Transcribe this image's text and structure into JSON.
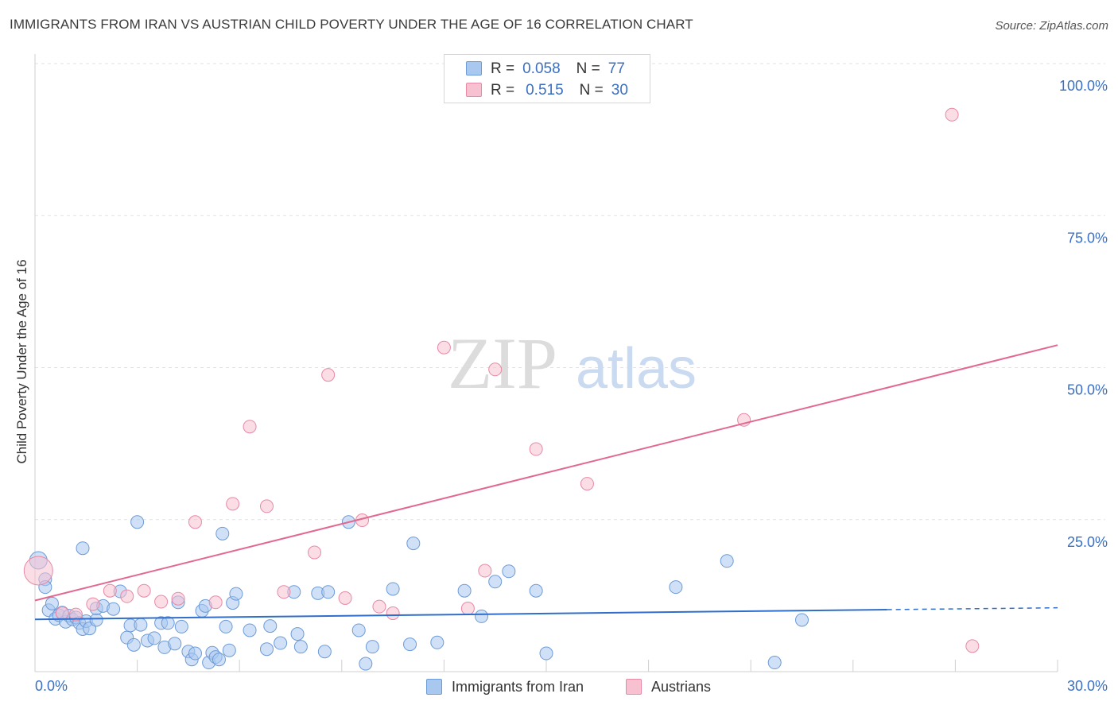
{
  "header": {
    "title": "IMMIGRANTS FROM IRAN VS AUSTRIAN CHILD POVERTY UNDER THE AGE OF 16 CORRELATION CHART",
    "source": "Source: ZipAtlas.com"
  },
  "watermark": {
    "zip": "ZIP",
    "atlas": "atlas"
  },
  "legend": {
    "rows": [
      {
        "r_label": "R =",
        "r_value": "0.058",
        "n_label": "N =",
        "n_value": "77",
        "color": "#a9c8f0",
        "border": "#6d9bd8"
      },
      {
        "r_label": "R =",
        "r_value": "0.515",
        "n_label": "N =",
        "n_value": "30",
        "color": "#f7c1d1",
        "border": "#e889a6"
      }
    ]
  },
  "chart_data": {
    "type": "scatter",
    "title": "IMMIGRANTS FROM IRAN VS AUSTRIAN CHILD POVERTY UNDER THE AGE OF 16 CORRELATION CHART",
    "xlabel": "",
    "ylabel": "Child Poverty Under the Age of 16",
    "xlim": [
      0,
      30
    ],
    "ylim": [
      0,
      100
    ],
    "x_ticks": [
      {
        "value": 0,
        "label": "0.0%"
      },
      {
        "value": 30,
        "label": "30.0%"
      }
    ],
    "y_ticks": [
      {
        "value": 25,
        "label": "25.0%"
      },
      {
        "value": 50,
        "label": "50.0%"
      },
      {
        "value": 75,
        "label": "75.0%"
      },
      {
        "value": 100,
        "label": "100.0%"
      }
    ],
    "grid": true,
    "legend_position": "top-center",
    "series": [
      {
        "name": "Immigrants from Iran",
        "color": "#a9c8f0",
        "edge": "#6d9bd8",
        "trend": {
          "x": [
            0,
            25
          ],
          "y": [
            8.6,
            10.2
          ],
          "dashed_to": [
            30,
            10.5
          ],
          "color": "#2f6fcb"
        },
        "points": [
          [
            0.1,
            18.3
          ],
          [
            0.3,
            15.2
          ],
          [
            0.3,
            13.9
          ],
          [
            0.4,
            10.1
          ],
          [
            0.5,
            11.2
          ],
          [
            0.6,
            8.7
          ],
          [
            0.7,
            9.3
          ],
          [
            0.8,
            9.7
          ],
          [
            0.9,
            8.2
          ],
          [
            1.0,
            9.2
          ],
          [
            1.1,
            8.6
          ],
          [
            1.2,
            8.9
          ],
          [
            1.3,
            8.0
          ],
          [
            1.4,
            7.0
          ],
          [
            1.5,
            8.3
          ],
          [
            1.6,
            7.1
          ],
          [
            1.8,
            8.5
          ],
          [
            1.4,
            20.3
          ],
          [
            1.8,
            10.4
          ],
          [
            2.0,
            10.8
          ],
          [
            2.3,
            10.3
          ],
          [
            2.5,
            13.2
          ],
          [
            2.7,
            5.6
          ],
          [
            2.8,
            7.6
          ],
          [
            2.9,
            4.4
          ],
          [
            3.1,
            7.7
          ],
          [
            3.3,
            5.1
          ],
          [
            3.5,
            5.5
          ],
          [
            3.7,
            8.0
          ],
          [
            3.8,
            4.0
          ],
          [
            3.9,
            8.0
          ],
          [
            4.1,
            4.6
          ],
          [
            4.2,
            11.4
          ],
          [
            4.3,
            7.4
          ],
          [
            4.5,
            3.3
          ],
          [
            4.6,
            2.0
          ],
          [
            4.7,
            3.0
          ],
          [
            4.9,
            10.0
          ],
          [
            5.0,
            10.8
          ],
          [
            5.1,
            1.5
          ],
          [
            5.2,
            3.1
          ],
          [
            5.3,
            2.4
          ],
          [
            5.4,
            2.0
          ],
          [
            5.5,
            22.7
          ],
          [
            5.6,
            7.4
          ],
          [
            5.7,
            3.5
          ],
          [
            5.8,
            11.3
          ],
          [
            5.9,
            12.8
          ],
          [
            3.0,
            24.6
          ],
          [
            6.3,
            6.8
          ],
          [
            6.8,
            3.7
          ],
          [
            6.9,
            7.5
          ],
          [
            7.2,
            4.7
          ],
          [
            7.6,
            13.1
          ],
          [
            7.7,
            6.2
          ],
          [
            7.8,
            4.1
          ],
          [
            8.3,
            12.9
          ],
          [
            8.5,
            3.3
          ],
          [
            9.2,
            24.6
          ],
          [
            9.5,
            6.8
          ],
          [
            9.7,
            1.3
          ],
          [
            9.9,
            4.1
          ],
          [
            10.5,
            13.6
          ],
          [
            11.0,
            4.5
          ],
          [
            11.1,
            21.1
          ],
          [
            11.8,
            4.8
          ],
          [
            12.6,
            13.3
          ],
          [
            13.1,
            9.1
          ],
          [
            13.5,
            14.8
          ],
          [
            13.9,
            16.5
          ],
          [
            14.7,
            13.3
          ],
          [
            15.0,
            3.0
          ],
          [
            18.8,
            13.9
          ],
          [
            20.3,
            18.2
          ],
          [
            22.5,
            8.5
          ],
          [
            21.7,
            1.5
          ],
          [
            8.6,
            13.1
          ]
        ]
      },
      {
        "name": "Austrians",
        "color": "#f7c1d1",
        "edge": "#e889a6",
        "trend": {
          "x": [
            0,
            30
          ],
          "y": [
            11.7,
            53.7
          ],
          "color": "#e2688f"
        },
        "points": [
          [
            0.1,
            16.6
          ],
          [
            0.8,
            9.6
          ],
          [
            1.2,
            9.4
          ],
          [
            1.7,
            11.1
          ],
          [
            2.2,
            13.3
          ],
          [
            2.7,
            12.4
          ],
          [
            3.2,
            13.3
          ],
          [
            3.7,
            11.5
          ],
          [
            4.2,
            12.0
          ],
          [
            4.7,
            24.6
          ],
          [
            5.3,
            11.4
          ],
          [
            5.8,
            27.6
          ],
          [
            6.3,
            40.3
          ],
          [
            6.8,
            27.2
          ],
          [
            7.3,
            13.1
          ],
          [
            8.2,
            19.6
          ],
          [
            8.6,
            48.8
          ],
          [
            9.1,
            12.1
          ],
          [
            9.6,
            24.9
          ],
          [
            10.1,
            10.7
          ],
          [
            10.5,
            9.6
          ],
          [
            12.0,
            53.3
          ],
          [
            12.7,
            10.4
          ],
          [
            13.2,
            16.6
          ],
          [
            13.5,
            49.7
          ],
          [
            14.7,
            36.6
          ],
          [
            16.2,
            30.9
          ],
          [
            20.8,
            41.4
          ],
          [
            26.9,
            91.6
          ],
          [
            27.5,
            4.2
          ]
        ]
      }
    ]
  }
}
